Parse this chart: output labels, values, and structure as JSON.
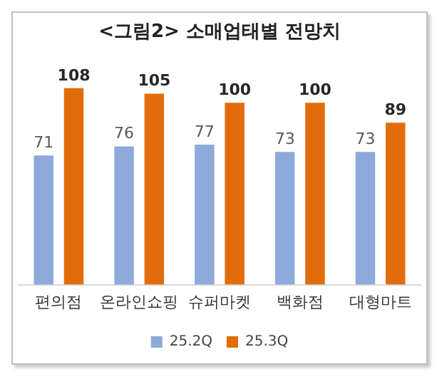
{
  "chart_data": {
    "type": "bar",
    "title": "<그림2> 소매업태별 전망치",
    "categories": [
      "편의점",
      "온라인쇼핑",
      "슈퍼마켓",
      "백화점",
      "대형마트"
    ],
    "series": [
      {
        "name": "25.2Q",
        "color": "#8eaadb",
        "values": [
          71,
          76,
          77,
          73,
          73
        ]
      },
      {
        "name": "25.3Q",
        "color": "#e36c0a",
        "values": [
          108,
          105,
          100,
          100,
          89
        ]
      }
    ],
    "data_labels": true,
    "legend": "bottom",
    "grid": false
  }
}
